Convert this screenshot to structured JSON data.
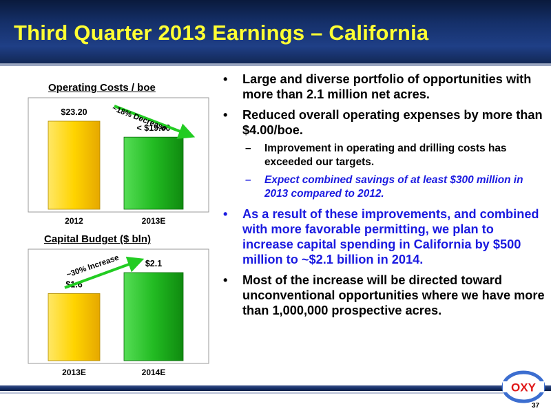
{
  "slide": {
    "title": "Third Quarter 2013 Earnings – California",
    "page_number": "37",
    "logo_text": "OXY"
  },
  "bullets": [
    {
      "type": "bullet",
      "color": "black",
      "text": "Large and diverse portfolio of opportunities with more than 2.1 million net acres."
    },
    {
      "type": "bullet",
      "color": "black",
      "text": "Reduced overall operating expenses by more than $4.00/boe."
    },
    {
      "type": "sub",
      "color": "black",
      "text": "Improvement in operating and drilling costs has exceeded our targets."
    },
    {
      "type": "sub",
      "color": "blue",
      "text": "Expect combined savings of at least $300 million in 2013 compared to 2012."
    },
    {
      "type": "bullet",
      "color": "blue",
      "text": "As a result of these improvements, and combined with more favorable permitting, we plan to increase capital spending in California by $500 million to ~$2.1 billion in 2014."
    },
    {
      "type": "bullet",
      "color": "black",
      "text": "Most of the increase will be directed toward unconventional opportunities where we have more than 1,000,000 prospective acres."
    }
  ],
  "markers": {
    "bullet": "•",
    "dash": "–"
  },
  "colors": {
    "yellow_bar": "#ffd400",
    "green_bar": "#22bb22",
    "arrow": "#22cc22",
    "blue_text": "#1a1ae0",
    "title_yellow": "#ffff33"
  },
  "chart_data": [
    {
      "type": "bar",
      "title": "Operating Costs / boe",
      "categories": [
        "2012",
        "2013E"
      ],
      "values": [
        23.2,
        19.0
      ],
      "data_labels": [
        "$23.20",
        "$19.00"
      ],
      "label_prefix": [
        "",
        "<"
      ],
      "bar_colors": [
        "yellow",
        "green"
      ],
      "annotation": "~18% Decrease",
      "annotation_direction": "down",
      "ylim": [
        0,
        23.2
      ]
    },
    {
      "type": "bar",
      "title": "Capital Budget ($ bln)",
      "categories": [
        "2013E",
        "2014E"
      ],
      "values": [
        1.6,
        2.1
      ],
      "data_labels": [
        "$1.6",
        "$2.1"
      ],
      "label_prefix": [
        "",
        ""
      ],
      "bar_colors": [
        "yellow",
        "green"
      ],
      "annotation": "~30% Increase",
      "annotation_direction": "up",
      "ylim": [
        0,
        2.1
      ]
    }
  ]
}
